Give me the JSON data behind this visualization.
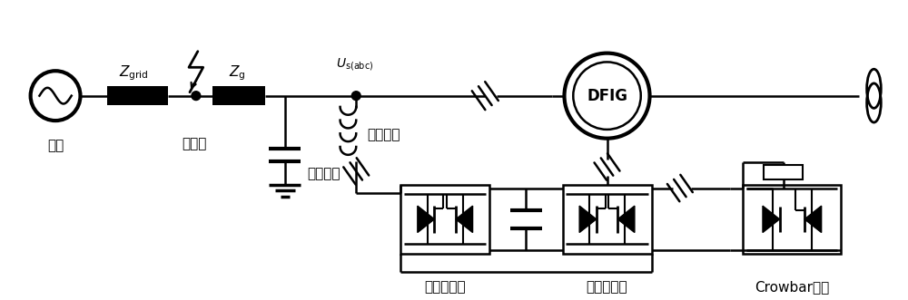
{
  "bg_color": "#ffffff",
  "line_color": "#000000",
  "lw": 1.8,
  "tlw": 3.0,
  "labels": {
    "grid": "电网",
    "fault": "故障点",
    "cap": "滤波电容",
    "ind": "滤波电感",
    "dfig": "DFIG",
    "grid_conv": "网侧变流器",
    "machine_conv": "机侧变流器",
    "crowbar": "Crowbar电路"
  },
  "figsize": [
    10.0,
    3.31
  ],
  "dpi": 100
}
